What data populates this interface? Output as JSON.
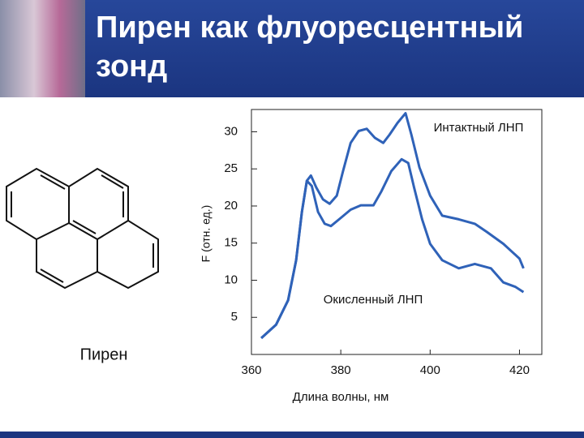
{
  "chart_data": {
    "type": "line",
    "title": "Пирен как флуоресцентный зонд",
    "xlabel": "Длина волны, нм",
    "ylabel": "F (отн. ед.)",
    "xlim": [
      360,
      425
    ],
    "ylim": [
      0,
      33
    ],
    "xticks": [
      360,
      380,
      400,
      420
    ],
    "yticks": [
      5,
      10,
      15,
      20,
      25,
      30
    ],
    "series": [
      {
        "name": "Интактный ЛНП",
        "color": "#2f62b8",
        "x": [
          362.2,
          365.5,
          368.2,
          370.0,
          371.3,
          372.4,
          373.3,
          374.5,
          376.0,
          377.5,
          379.1,
          380.5,
          382.2,
          384.0,
          385.8,
          387.6,
          389.5,
          390.9,
          392.7,
          394.5,
          395.8,
          397.6,
          400.0,
          402.7,
          406.4,
          410.0,
          412.7,
          416.4,
          420.0,
          420.9
        ],
        "values": [
          2.2,
          4.0,
          7.3,
          12.7,
          19.2,
          23.4,
          24.1,
          22.5,
          20.9,
          20.3,
          21.4,
          24.7,
          28.5,
          30.1,
          30.4,
          29.2,
          28.5,
          29.6,
          31.2,
          32.5,
          29.6,
          25.2,
          21.4,
          18.7,
          18.2,
          17.6,
          16.5,
          14.9,
          12.9,
          11.6
        ]
      },
      {
        "name": "Окисленный ЛНП",
        "color": "#2f62b8",
        "x": [
          362.2,
          365.5,
          368.2,
          370.0,
          371.3,
          372.4,
          373.5,
          374.9,
          376.4,
          377.8,
          380.0,
          382.2,
          384.5,
          387.3,
          389.1,
          391.3,
          393.6,
          395.1,
          396.4,
          398.2,
          400.0,
          402.7,
          406.4,
          410.0,
          413.6,
          416.4,
          419.1,
          420.9
        ],
        "values": [
          2.2,
          4.0,
          7.3,
          12.7,
          19.2,
          23.4,
          22.7,
          19.2,
          17.6,
          17.3,
          18.4,
          19.5,
          20.1,
          20.1,
          22.0,
          24.7,
          26.3,
          25.8,
          22.5,
          18.2,
          14.9,
          12.7,
          11.6,
          12.2,
          11.6,
          9.7,
          9.1,
          8.4
        ]
      }
    ]
  },
  "structure_label": "Пирен"
}
